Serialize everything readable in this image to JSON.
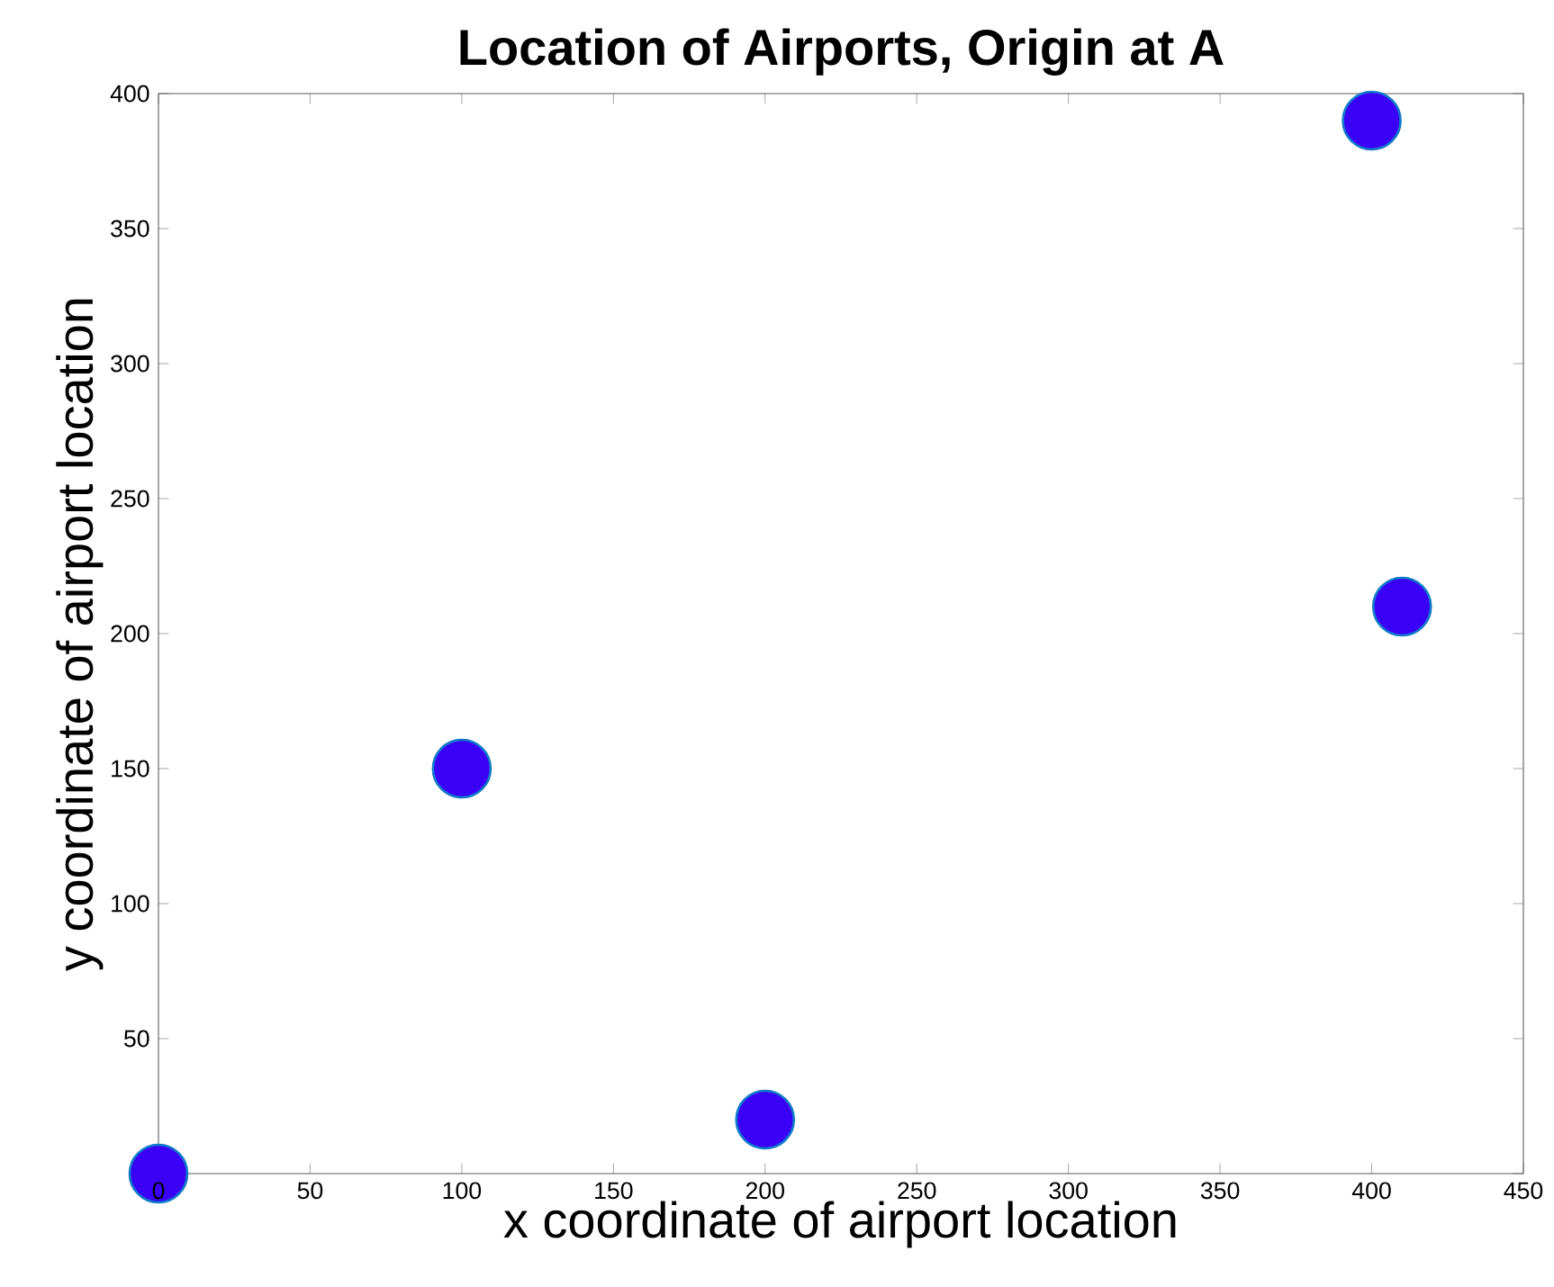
{
  "chart_data": {
    "type": "scatter",
    "title": "Location of Airports, Origin at A",
    "xlabel": "x coordinate of airport location",
    "ylabel": "y coordinate of airport location",
    "x": [
      0,
      100,
      200,
      400,
      410
    ],
    "values": [
      0,
      150,
      20,
      390,
      210
    ],
    "color": "#3a00f5",
    "marker": "circle",
    "xlim": [
      0,
      450
    ],
    "ylim": [
      0,
      400
    ],
    "xticks": [
      0,
      50,
      100,
      150,
      200,
      250,
      300,
      350,
      400,
      450
    ],
    "yticks": [
      {
        "value": 0,
        "label": null
      },
      50,
      100,
      150,
      200,
      250,
      300,
      350,
      400
    ],
    "grid": false
  }
}
